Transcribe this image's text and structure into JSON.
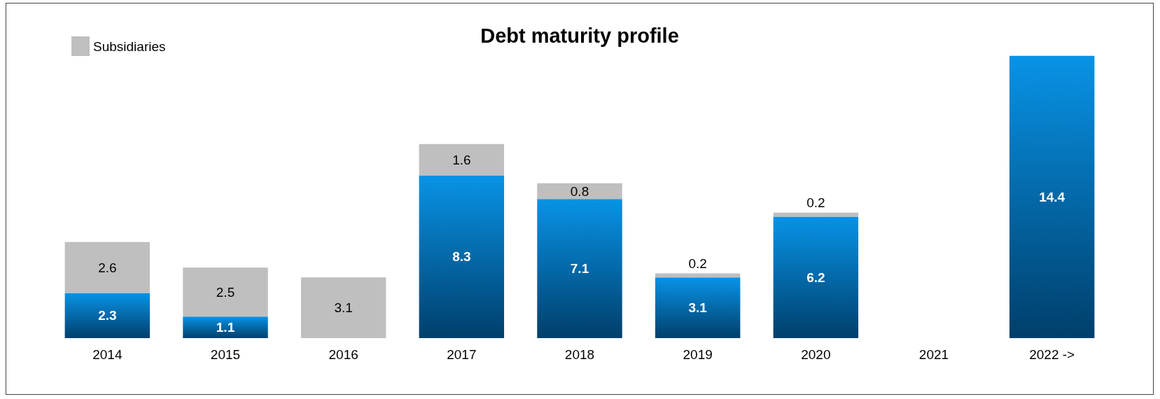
{
  "chart_data": {
    "type": "bar",
    "title": "Debt maturity profile",
    "stacked": true,
    "data_labels": true,
    "legend": "top left",
    "categories": [
      "2014",
      "2015",
      "2016",
      "2017",
      "2018",
      "2019",
      "2020",
      "2021",
      "2022 ->"
    ],
    "series": [
      {
        "color": "#0893e6",
        "values": [
          2.3,
          1.1,
          null,
          8.3,
          7.1,
          3.1,
          6.2,
          null,
          14.4
        ]
      },
      {
        "name": "Subsidiaries",
        "color": "#bfbfbf",
        "values": [
          2.6,
          2.5,
          3.1,
          1.6,
          0.8,
          0.2,
          0.2,
          null,
          null
        ]
      }
    ]
  }
}
